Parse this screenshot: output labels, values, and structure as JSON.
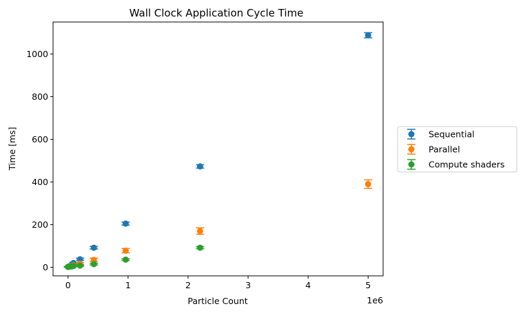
{
  "chart_data": {
    "type": "scatter",
    "title": "Wall Clock Application Cycle Time",
    "xlabel": "Particle Count",
    "ylabel": "Time [ms]",
    "x_offset_label": "1e6",
    "xlim": [
      -0.25,
      5.25
    ],
    "ylim": [
      -40,
      1150
    ],
    "x_ticks": [
      0,
      1,
      2,
      3,
      4,
      5
    ],
    "x_tick_labels": [
      "0",
      "1",
      "2",
      "3",
      "4",
      "5"
    ],
    "y_ticks": [
      0,
      200,
      400,
      600,
      800,
      1000
    ],
    "y_tick_labels": [
      "0",
      "200",
      "400",
      "600",
      "800",
      "1000"
    ],
    "grid": false,
    "legend_position": "center-right outside",
    "series": [
      {
        "name": "Sequential",
        "color": "#1f77b4",
        "points": [
          {
            "x": 0.0,
            "y": 2,
            "err": 2
          },
          {
            "x": 0.02,
            "y": 5,
            "err": 2
          },
          {
            "x": 0.06,
            "y": 10,
            "err": 3
          },
          {
            "x": 0.09,
            "y": 20,
            "err": 4
          },
          {
            "x": 0.2,
            "y": 38,
            "err": 5
          },
          {
            "x": 0.43,
            "y": 92,
            "err": 6
          },
          {
            "x": 0.96,
            "y": 205,
            "err": 7
          },
          {
            "x": 2.2,
            "y": 473,
            "err": 8
          },
          {
            "x": 5.0,
            "y": 1088,
            "err": 12
          }
        ]
      },
      {
        "name": "Parallel",
        "color": "#ff7f0e",
        "points": [
          {
            "x": 0.0,
            "y": 2,
            "err": 2
          },
          {
            "x": 0.02,
            "y": 3,
            "err": 2
          },
          {
            "x": 0.06,
            "y": 6,
            "err": 3
          },
          {
            "x": 0.09,
            "y": 9,
            "err": 4
          },
          {
            "x": 0.2,
            "y": 17,
            "err": 5
          },
          {
            "x": 0.43,
            "y": 35,
            "err": 8
          },
          {
            "x": 0.96,
            "y": 78,
            "err": 10
          },
          {
            "x": 2.2,
            "y": 170,
            "err": 15
          },
          {
            "x": 5.0,
            "y": 390,
            "err": 20
          }
        ]
      },
      {
        "name": "Compute shaders",
        "color": "#2ca02c",
        "points": [
          {
            "x": 0.0,
            "y": 2,
            "err": 2
          },
          {
            "x": 0.02,
            "y": 3,
            "err": 2
          },
          {
            "x": 0.06,
            "y": 4,
            "err": 2
          },
          {
            "x": 0.09,
            "y": 6,
            "err": 3
          },
          {
            "x": 0.2,
            "y": 8,
            "err": 3
          },
          {
            "x": 0.43,
            "y": 15,
            "err": 4
          },
          {
            "x": 0.96,
            "y": 36,
            "err": 4
          },
          {
            "x": 2.2,
            "y": 92,
            "err": 5
          }
        ]
      }
    ]
  }
}
